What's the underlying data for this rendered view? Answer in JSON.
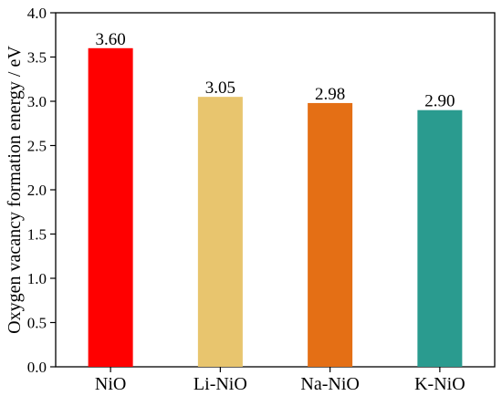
{
  "chart_data": {
    "type": "bar",
    "title": "",
    "xlabel": "",
    "ylabel": "Oxygen vacancy formation energy / eV",
    "ylim": [
      0.0,
      4.0
    ],
    "yticks": [
      "0.0",
      "0.5",
      "1.0",
      "1.5",
      "2.0",
      "2.5",
      "3.0",
      "3.5",
      "4.0"
    ],
    "categories": [
      "NiO",
      "Li-NiO",
      "Na-NiO",
      "K-NiO"
    ],
    "values": [
      3.6,
      3.05,
      2.98,
      2.9
    ],
    "value_labels": [
      "3.60",
      "3.05",
      "2.98",
      "2.90"
    ],
    "bar_colors": [
      "#FF0000",
      "#E8C56E",
      "#E46F15",
      "#2A9B8F"
    ],
    "grid": false,
    "legend": "none"
  }
}
